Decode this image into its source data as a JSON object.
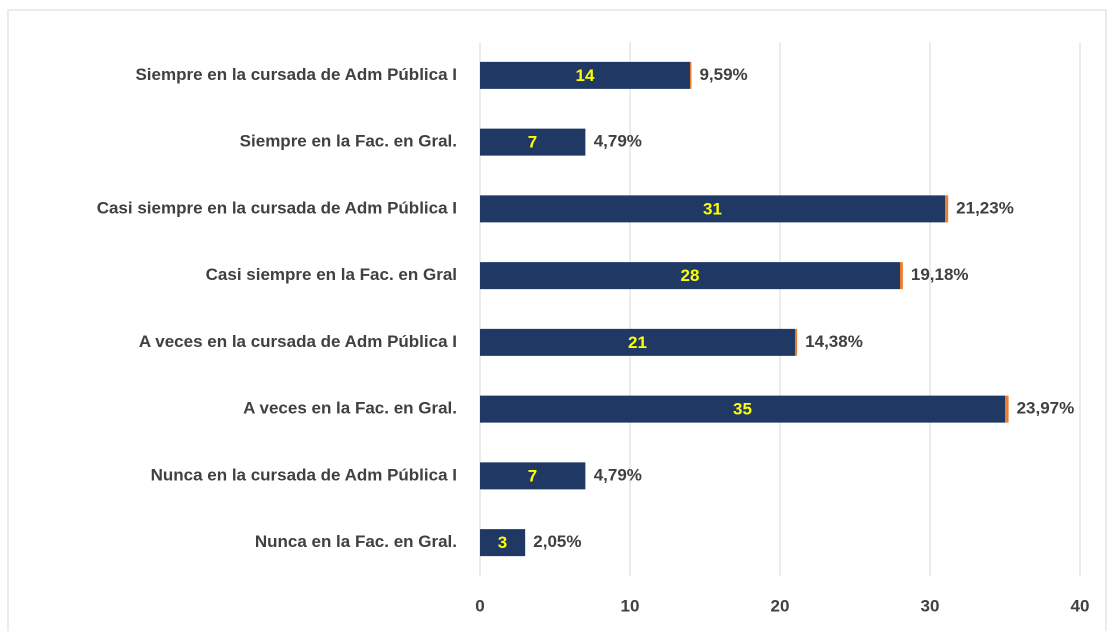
{
  "chart_data": {
    "type": "bar",
    "orientation": "horizontal",
    "stacked": true,
    "categories": [
      "Siempre en la cursada de Adm Pública I",
      "Siempre en la Fac. en Gral.",
      "Casi siempre en la cursada de Adm Pública I",
      "Casi siempre en la Fac. en Gral",
      "A veces en la cursada de Adm Pública I",
      "A veces en la Fac. en Gral.",
      "Nunca en la cursada de Adm Pública I",
      "Nunca en la Fac. en Gral."
    ],
    "series": [
      {
        "color": "#1f3864",
        "label_color": "#ffff00",
        "values": [
          14,
          7,
          31,
          28,
          21,
          35,
          7,
          3
        ]
      },
      {
        "color": "#ed7d31",
        "label_color": "#404040",
        "values": [
          0.0959,
          0.0479,
          0.2123,
          0.1918,
          0.1438,
          0.2397,
          0.0479,
          0.0205
        ],
        "value_labels": [
          "9,59%",
          "4,79%",
          "21,23%",
          "19,18%",
          "14,38%",
          "23,97%",
          "4,79%",
          "2,05%"
        ]
      }
    ],
    "xlim": [
      0,
      40
    ],
    "xticks": [
      0,
      10,
      20,
      30,
      40
    ],
    "grid": true
  }
}
